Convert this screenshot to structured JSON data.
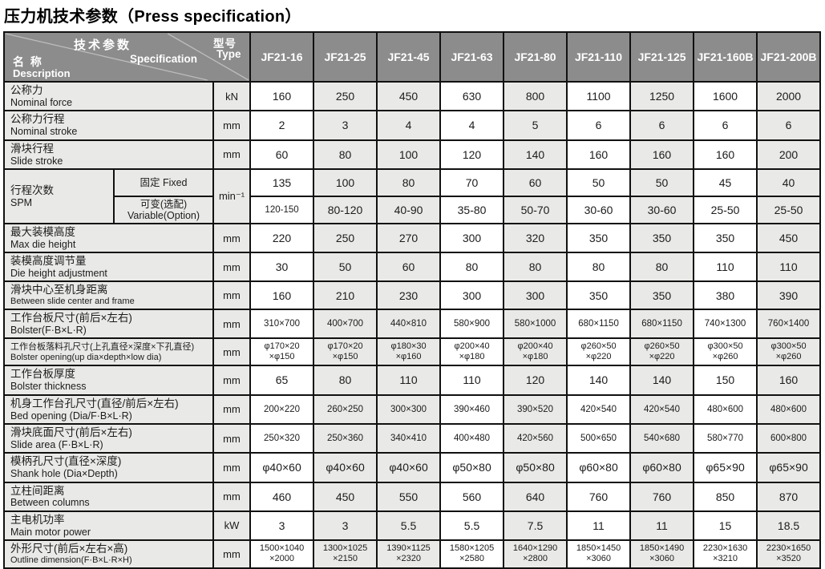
{
  "title": "压力机技术参数（Press specification）",
  "table": {
    "corner": {
      "spec_cn": "技术参数",
      "spec_en": "Specification",
      "name_cn": "名 称",
      "name_en": "Description",
      "type_cn": "型号",
      "type_en": "Type"
    },
    "models": [
      "JF21-16",
      "JF21-25",
      "JF21-45",
      "JF21-63",
      "JF21-80",
      "JF21-110",
      "JF21-125",
      "JF21-160B",
      "JF21-200B"
    ],
    "col_shaded": [
      false,
      true,
      true,
      false,
      true,
      false,
      true,
      false,
      true
    ],
    "rows": [
      {
        "cn": "公称力",
        "en": "Nominal force",
        "unit": "kN",
        "values": [
          "160",
          "250",
          "450",
          "630",
          "800",
          "1100",
          "1250",
          "1600",
          "2000"
        ]
      },
      {
        "cn": "公称力行程",
        "en": "Nominal stroke",
        "unit": "mm",
        "values": [
          "2",
          "3",
          "4",
          "4",
          "5",
          "6",
          "6",
          "6",
          "6"
        ]
      },
      {
        "cn": "滑块行程",
        "en": "Slide stroke",
        "unit": "mm",
        "values": [
          "60",
          "80",
          "100",
          "120",
          "140",
          "160",
          "160",
          "160",
          "200"
        ]
      },
      {
        "cn": "行程次数",
        "en": "SPM",
        "unit": "min⁻¹",
        "sub": [
          {
            "label": "固定 Fixed",
            "values": [
              "135",
              "100",
              "80",
              "70",
              "60",
              "50",
              "50",
              "45",
              "40"
            ]
          },
          {
            "label": "可变(选配)\nVariable(Option)",
            "values": [
              "120-150",
              "80-120",
              "40-90",
              "35-80",
              "50-70",
              "30-60",
              "30-60",
              "25-50",
              "25-50"
            ]
          }
        ]
      },
      {
        "cn": "最大装模高度",
        "en": "Max die height",
        "unit": "mm",
        "values": [
          "220",
          "250",
          "270",
          "300",
          "320",
          "350",
          "350",
          "350",
          "450"
        ]
      },
      {
        "cn": "装模高度调节量",
        "en": "Die height adjustment",
        "unit": "mm",
        "values": [
          "30",
          "50",
          "60",
          "80",
          "80",
          "80",
          "80",
          "110",
          "110"
        ]
      },
      {
        "cn": "滑块中心至机身距离",
        "en": "Between slide center and  frame",
        "unit": "mm",
        "values": [
          "160",
          "210",
          "230",
          "300",
          "300",
          "350",
          "350",
          "380",
          "390"
        ]
      },
      {
        "cn": "工作台板尺寸(前后×左右)",
        "en": "Bolster(F·B×L·R)",
        "unit": "mm",
        "values": [
          "310×700",
          "400×700",
          "440×810",
          "580×900",
          "580×1000",
          "680×1150",
          "680×1150",
          "740×1300",
          "760×1400"
        ]
      },
      {
        "cn": "工作台板落料孔尺寸(上孔直径×深度×下孔直径)",
        "en": "Bolster opening(up dia×depth×low dia)",
        "unit": "mm",
        "values": [
          "φ170×20\n×φ150",
          "φ170×20\n×φ150",
          "φ180×30\n×φ160",
          "φ200×40\n×φ180",
          "φ200×40\n×φ180",
          "φ260×50\n×φ220",
          "φ260×50\n×φ220",
          "φ300×50\n×φ260",
          "φ300×50\n×φ260"
        ]
      },
      {
        "cn": "工作台板厚度",
        "en": "Bolster thickness",
        "unit": "mm",
        "values": [
          "65",
          "80",
          "110",
          "110",
          "120",
          "140",
          "140",
          "150",
          "160"
        ]
      },
      {
        "cn": "机身工作台孔尺寸(直径/前后×左右)",
        "en": "Bed opening (Dia/F·B×L·R)",
        "unit": "mm",
        "values": [
          "200×220",
          "260×250",
          "300×300",
          "390×460",
          "390×520",
          "420×540",
          "420×540",
          "480×600",
          "480×600"
        ]
      },
      {
        "cn": "滑块底面尺寸(前后×左右)",
        "en": "Slide area (F·B×L·R)",
        "unit": "mm",
        "values": [
          "250×320",
          "250×360",
          "340×410",
          "400×480",
          "420×560",
          "500×650",
          "540×680",
          "580×770",
          "600×800"
        ]
      },
      {
        "cn": "模柄孔尺寸(直径×深度)",
        "en": "Shank hole (Dia×Depth)",
        "unit": "mm",
        "values": [
          "φ40×60",
          "φ40×60",
          "φ40×60",
          "φ50×80",
          "φ50×80",
          "φ60×80",
          "φ60×80",
          "φ65×90",
          "φ65×90"
        ]
      },
      {
        "cn": "立柱间距离",
        "en": "Between columns",
        "unit": "mm",
        "values": [
          "460",
          "450",
          "550",
          "560",
          "640",
          "760",
          "760",
          "850",
          "870"
        ]
      },
      {
        "cn": "主电机功率",
        "en": "Main motor power",
        "unit": "kW",
        "values": [
          "3",
          "3",
          "5.5",
          "5.5",
          "7.5",
          "11",
          "11",
          "15",
          "18.5"
        ]
      },
      {
        "cn": "外形尺寸(前后×左右×高)",
        "en": "Outline dimension(F·B×L·R×H)",
        "unit": "mm",
        "values": [
          "1500×1040\n×2000",
          "1300×1025\n×2150",
          "1390×1125\n×2320",
          "1580×1205\n×2580",
          "1640×1290\n×2800",
          "1850×1450\n×3060",
          "1850×1490\n×3060",
          "2230×1630\n×3210",
          "2230×1650\n×3520"
        ]
      }
    ]
  }
}
